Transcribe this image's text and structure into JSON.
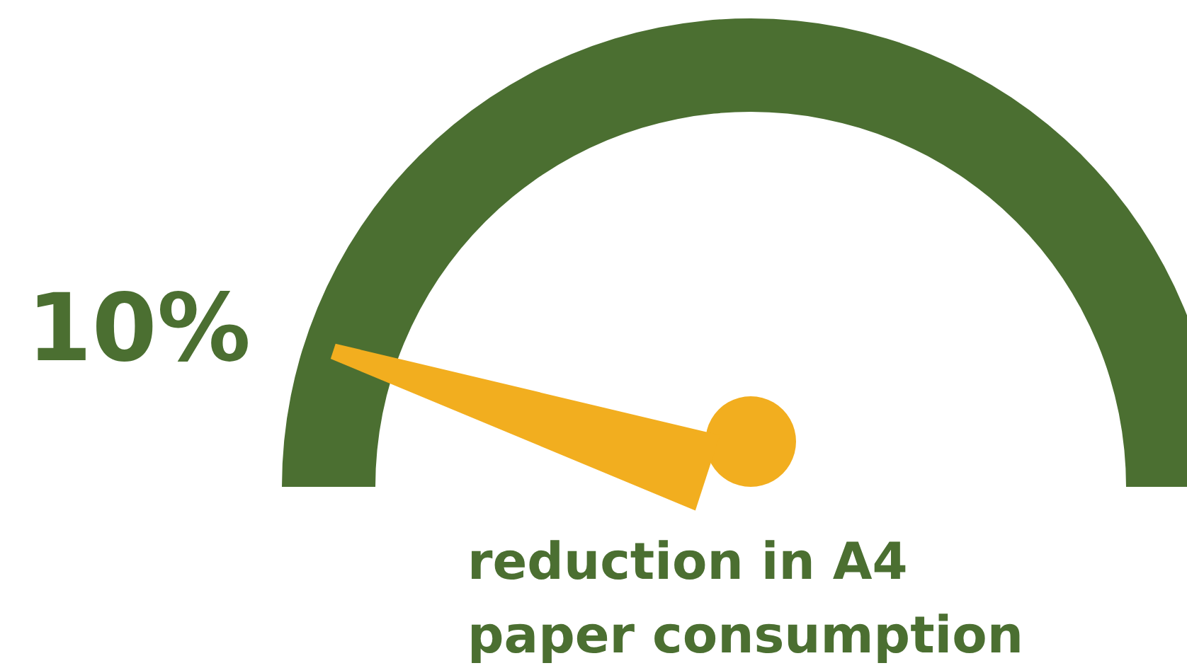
{
  "chart_data": {
    "type": "other",
    "subtitle": "reduction in A4 paper consumption",
    "values": [
      10
    ],
    "value_labels": [
      "10%"
    ],
    "color": "#f2ae1f",
    "colors": [
      "#4b6f31"
    ]
  }
}
